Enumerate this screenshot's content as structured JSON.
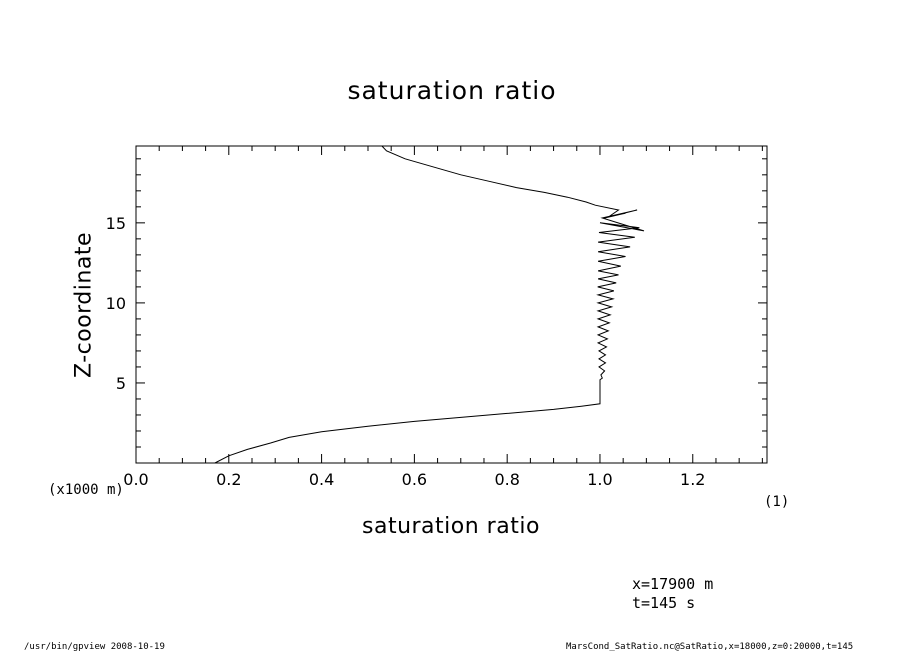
{
  "chart_data": {
    "type": "line",
    "title": "saturation ratio",
    "xlabel": "saturation ratio",
    "ylabel": "Z-coordinate",
    "y_units_note": "(x1000 m)",
    "x_units_note": "(1)",
    "xlim": [
      0.0,
      1.36
    ],
    "ylim": [
      0,
      19.8
    ],
    "grid": false,
    "xticks": [
      "0.0",
      "0.2",
      "0.4",
      "0.6",
      "0.8",
      "1.0",
      "1.2"
    ],
    "yticks": [
      "5",
      "10",
      "15"
    ],
    "series": [
      {
        "x": [
          0.17,
          0.2,
          0.24,
          0.29,
          0.33,
          0.4,
          0.5,
          0.6,
          0.7,
          0.8,
          0.9,
          0.96,
          1.0,
          1.0,
          1.005,
          1.002,
          1.01,
          0.998,
          1.012,
          0.998,
          1.012,
          0.998,
          1.014,
          0.996,
          1.016,
          0.996,
          1.018,
          0.996,
          1.02,
          0.996,
          1.022,
          0.996,
          1.025,
          0.996,
          1.028,
          0.996,
          1.03,
          0.995,
          1.035,
          0.996,
          1.04,
          0.996,
          1.045,
          0.996,
          1.055,
          0.996,
          1.065,
          0.996,
          1.075,
          0.998,
          1.085,
          1.0,
          1.095,
          1.005,
          1.08,
          1.01,
          1.055,
          1.02,
          1.04,
          0.99,
          0.97,
          0.93,
          0.88,
          0.82,
          0.76,
          0.7,
          0.64,
          0.58,
          0.54,
          0.53
        ],
        "y": [
          0.0,
          0.45,
          0.85,
          1.25,
          1.6,
          1.95,
          2.3,
          2.6,
          2.85,
          3.1,
          3.35,
          3.55,
          3.7,
          5.2,
          5.3,
          5.5,
          5.75,
          6.0,
          6.25,
          6.5,
          6.75,
          7.0,
          7.25,
          7.5,
          7.75,
          8.0,
          8.25,
          8.5,
          8.75,
          9.0,
          9.25,
          9.5,
          9.75,
          10.0,
          10.25,
          10.5,
          10.75,
          11.0,
          11.25,
          11.5,
          11.75,
          12.0,
          12.3,
          12.6,
          12.9,
          13.2,
          13.5,
          13.8,
          14.1,
          14.4,
          14.7,
          15.0,
          14.5,
          15.3,
          15.8,
          15.3,
          15.6,
          15.4,
          15.8,
          16.1,
          16.3,
          16.6,
          16.9,
          17.2,
          17.6,
          18.0,
          18.5,
          19.0,
          19.5,
          19.8
        ]
      }
    ]
  },
  "info": {
    "line1": "x=17900 m",
    "line2": "t=145 s"
  },
  "footer": {
    "left": "/usr/bin/gpview   2008-10-19",
    "right": "MarsCond_SatRatio.nc@SatRatio,x=18000,z=0:20000,t=145"
  }
}
